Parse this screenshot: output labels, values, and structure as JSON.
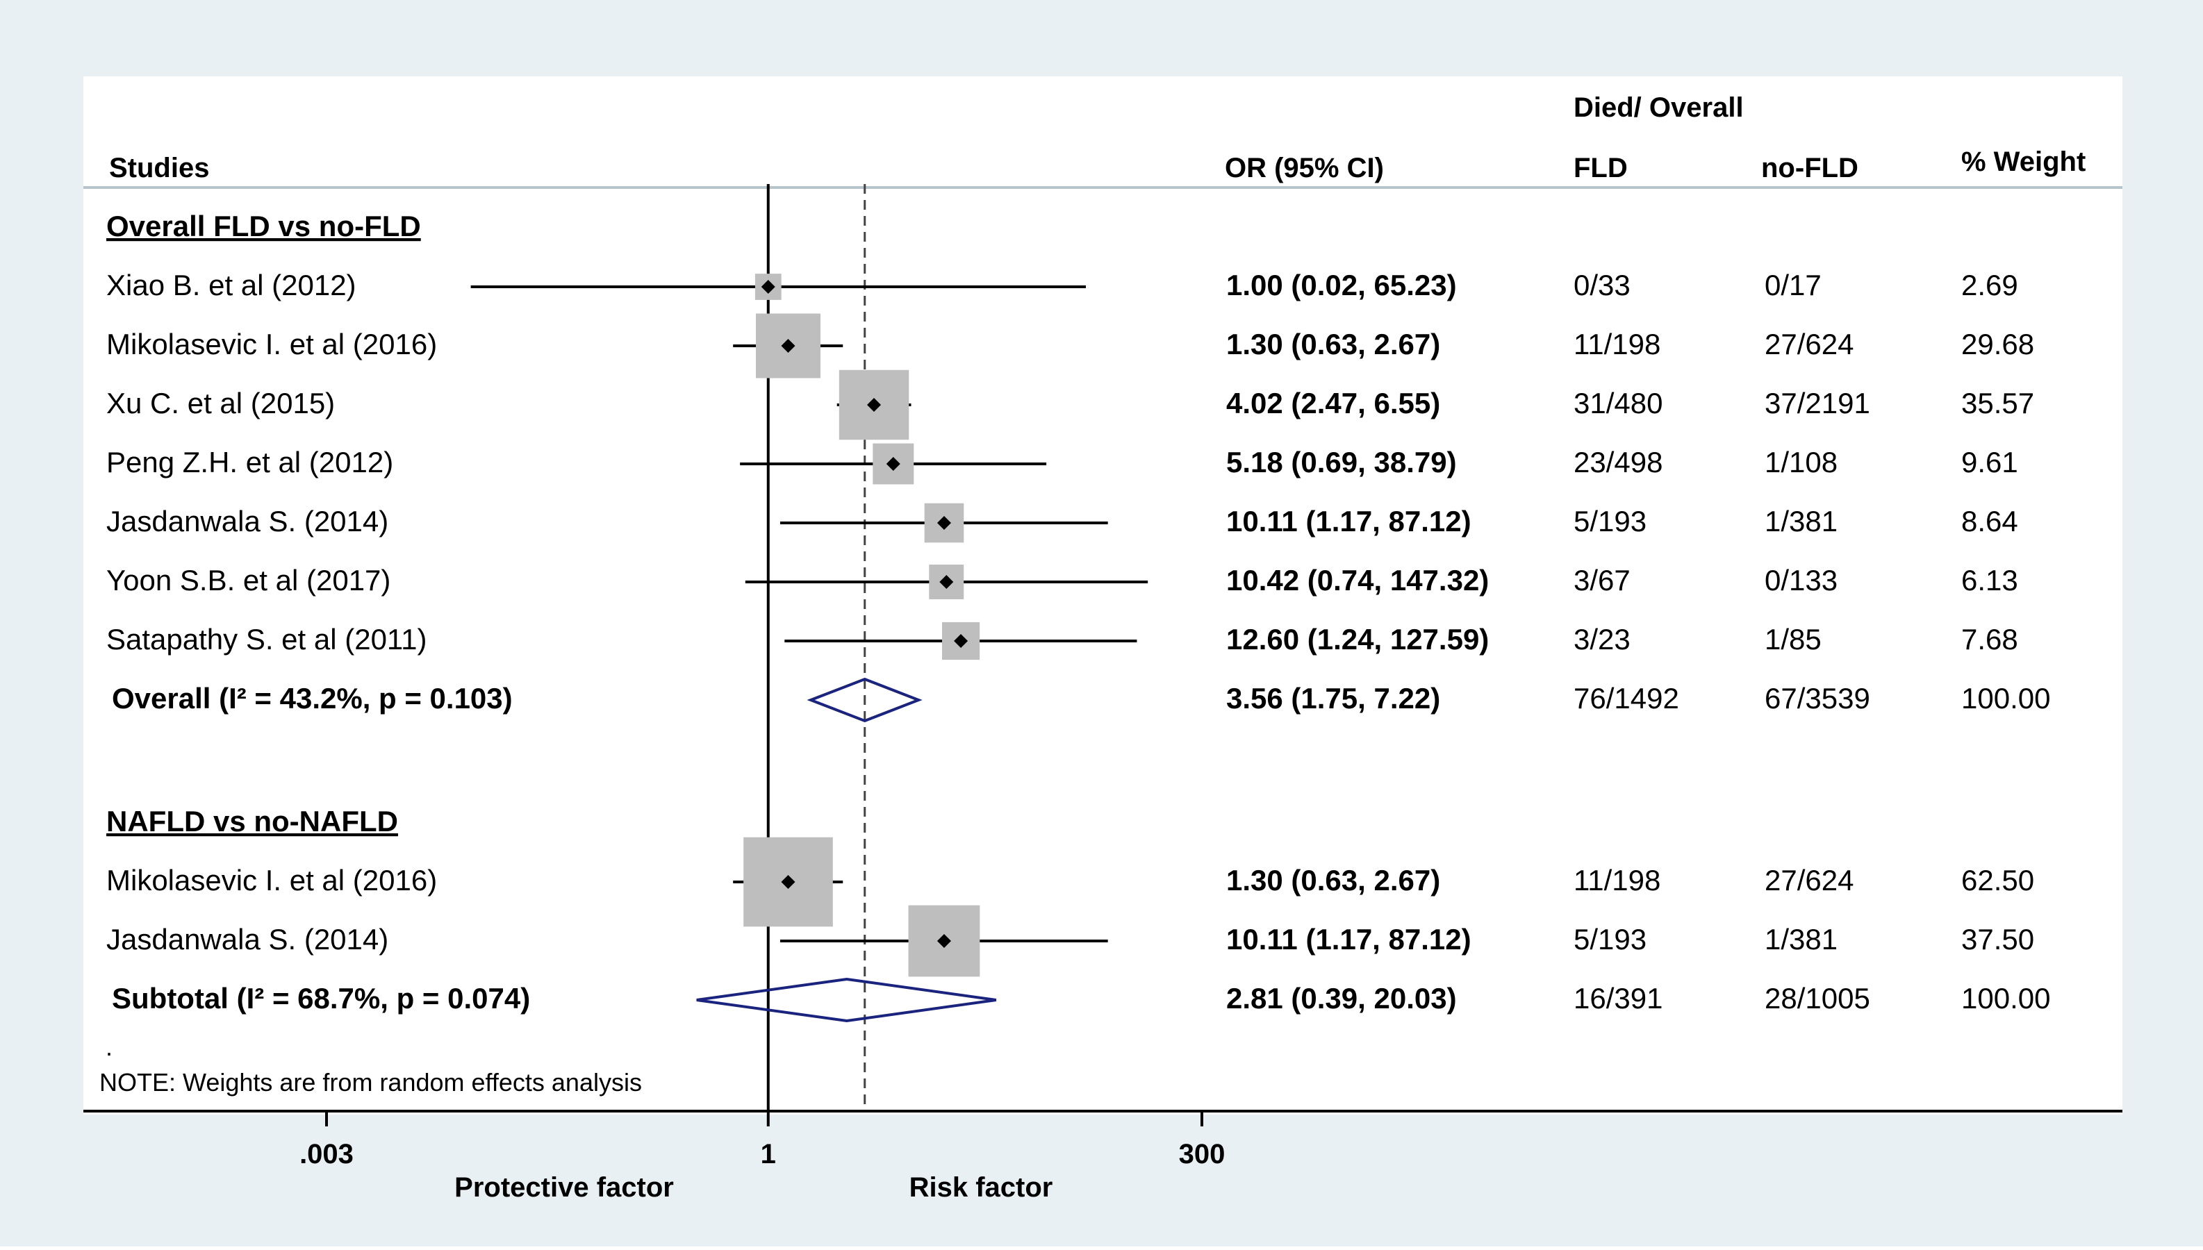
{
  "chart_data": {
    "type": "forest",
    "title": "",
    "scale": "log",
    "xlim": [
      0.003,
      300
    ],
    "null_value": 1,
    "pooled_reference": 3.56,
    "x_ticks": [
      ".003",
      "1",
      "300"
    ],
    "x_tick_values": [
      0.003,
      1,
      300
    ],
    "xlabel_left": "Protective factor",
    "xlabel_right": "Risk factor",
    "headers": {
      "studies": "Studies",
      "or_ci": "OR (95% CI)",
      "group": "Died/ Overall",
      "fld": "FLD",
      "nofld": "no-FLD",
      "weight": "% Weight"
    },
    "subgroups": [
      {
        "title": "Overall FLD vs no-FLD",
        "studies": [
          {
            "name": "Xiao B. et al (2012)",
            "or": 1.0,
            "lo": 0.02,
            "hi": 65.23,
            "or_text": "1.00 (0.02, 65.23)",
            "fld": "0/33",
            "nofld": "0/17",
            "weight": "2.69",
            "w": 2.69
          },
          {
            "name": "Mikolasevic I. et al (2016)",
            "or": 1.3,
            "lo": 0.63,
            "hi": 2.67,
            "or_text": "1.30 (0.63, 2.67)",
            "fld": "11/198",
            "nofld": "27/624",
            "weight": "29.68",
            "w": 29.68
          },
          {
            "name": "Xu C. et al (2015)",
            "or": 4.02,
            "lo": 2.47,
            "hi": 6.55,
            "or_text": "4.02 (2.47, 6.55)",
            "fld": "31/480",
            "nofld": "37/2191",
            "weight": "35.57",
            "w": 35.57
          },
          {
            "name": "Peng Z.H. et al (2012)",
            "or": 5.18,
            "lo": 0.69,
            "hi": 38.79,
            "or_text": "5.18 (0.69, 38.79)",
            "fld": "23/498",
            "nofld": "1/108",
            "weight": "9.61",
            "w": 9.61
          },
          {
            "name": "Jasdanwala S. (2014)",
            "or": 10.11,
            "lo": 1.17,
            "hi": 87.12,
            "or_text": "10.11 (1.17, 87.12)",
            "fld": "5/193",
            "nofld": "1/381",
            "weight": "8.64",
            "w": 8.64
          },
          {
            "name": "Yoon S.B. et al (2017)",
            "or": 10.42,
            "lo": 0.74,
            "hi": 147.32,
            "or_text": "10.42 (0.74, 147.32)",
            "fld": "3/67",
            "nofld": "0/133",
            "weight": "6.13",
            "w": 6.13
          },
          {
            "name": "Satapathy S. et al (2011)",
            "or": 12.6,
            "lo": 1.24,
            "hi": 127.59,
            "or_text": "12.60 (1.24, 127.59)",
            "fld": "3/23",
            "nofld": "1/85",
            "weight": "7.68",
            "w": 7.68
          }
        ],
        "pooled": {
          "label": "Overall  (I² = 43.2%, p = 0.103)",
          "or": 3.56,
          "lo": 1.75,
          "hi": 7.22,
          "or_text": "3.56 (1.75, 7.22)",
          "fld": "76/1492",
          "nofld": "67/3539",
          "weight": "100.00"
        }
      },
      {
        "title": "NAFLD vs no-NAFLD",
        "studies": [
          {
            "name": "Mikolasevic I. et al (2016)",
            "or": 1.3,
            "lo": 0.63,
            "hi": 2.67,
            "or_text": "1.30 (0.63, 2.67)",
            "fld": "11/198",
            "nofld": "27/624",
            "weight": "62.50",
            "w": 62.5
          },
          {
            "name": "Jasdanwala S. (2014)",
            "or": 10.11,
            "lo": 1.17,
            "hi": 87.12,
            "or_text": "10.11 (1.17, 87.12)",
            "fld": "5/193",
            "nofld": "1/381",
            "weight": "37.50",
            "w": 37.5
          }
        ],
        "pooled": {
          "label": "Subtotal  (I² = 68.7%, p = 0.074)",
          "or": 2.81,
          "lo": 0.39,
          "hi": 20.03,
          "or_text": "2.81 (0.39, 20.03)",
          "fld": "16/391",
          "nofld": "28/1005",
          "weight": "100.00"
        }
      }
    ],
    "note": "NOTE: Weights are from random effects analysis",
    "stray_mark": "."
  },
  "colors": {
    "outer_bg": "#e9f0f3",
    "panel_bg": "#ffffff",
    "box": "#bebebe",
    "diamond": "#1a237e",
    "line": "#000000",
    "header_rule": "#b8c4cc"
  }
}
